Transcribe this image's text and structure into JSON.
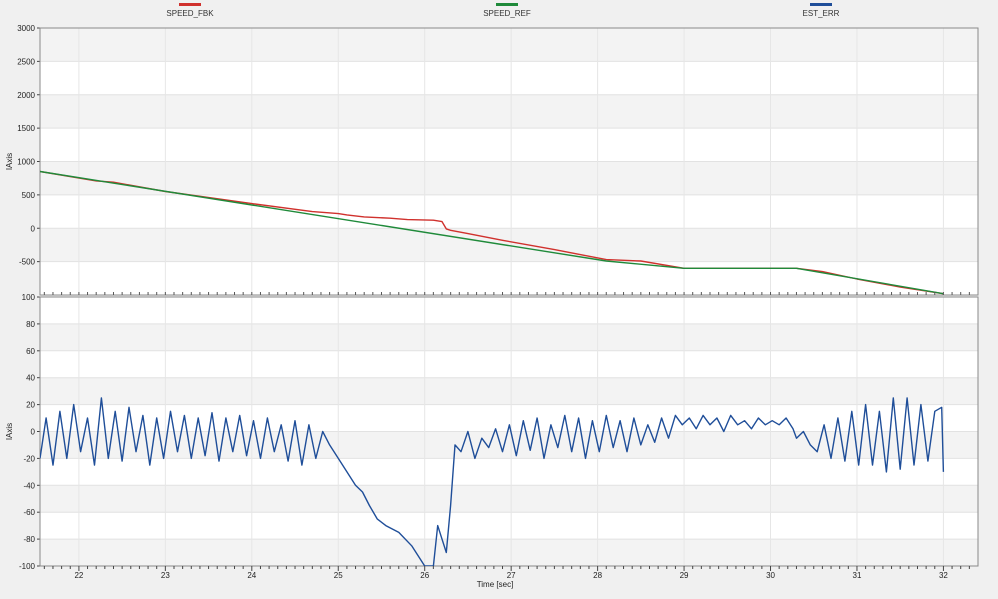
{
  "legend": [
    {
      "label": "SPEED_FBK",
      "color": "#d0312d"
    },
    {
      "label": "SPEED_REF",
      "color": "#1f8a3a"
    },
    {
      "label": "EST_ERR",
      "color": "#1f4e99"
    }
  ],
  "xlabel": "Time [sec]",
  "chart_data": [
    {
      "type": "line",
      "ylabel": "IAxis",
      "xlim": [
        21.55,
        32.4
      ],
      "ylim": [
        -1000,
        3000
      ],
      "yticks": [
        -500,
        0,
        500,
        1000,
        1500,
        2000,
        2500,
        3000
      ],
      "grid": true,
      "series": [
        {
          "name": "SPEED_REF",
          "color": "#1f8a3a",
          "x": [
            21.55,
            28.1,
            29.0,
            30.3,
            32.0
          ],
          "y": [
            850,
            -490,
            -600,
            -600,
            -980
          ]
        },
        {
          "name": "SPEED_FBK",
          "color": "#d0312d",
          "x": [
            21.55,
            22.2,
            22.4,
            23.0,
            24.0,
            24.7,
            25.0,
            25.1,
            25.3,
            25.6,
            25.8,
            26.1,
            26.2,
            26.25,
            26.3,
            26.5,
            26.9,
            27.5,
            28.1,
            28.5,
            29.0,
            30.3,
            30.6,
            31.0,
            31.5,
            32.0
          ],
          "y": [
            850,
            710,
            690,
            550,
            370,
            250,
            220,
            200,
            170,
            150,
            130,
            120,
            100,
            -10,
            -30,
            -80,
            -180,
            -320,
            -470,
            -490,
            -600,
            -600,
            -650,
            -760,
            -880,
            -980
          ]
        }
      ]
    },
    {
      "type": "line",
      "ylabel": "IAxis",
      "xlim": [
        21.55,
        32.4
      ],
      "ylim": [
        -100,
        100
      ],
      "yticks": [
        -100,
        -80,
        -60,
        -40,
        -20,
        0,
        20,
        40,
        60,
        80,
        100
      ],
      "xticks": [
        22,
        23,
        24,
        25,
        26,
        27,
        28,
        29,
        30,
        31,
        32
      ],
      "grid": true,
      "series": [
        {
          "name": "EST_ERR",
          "color": "#1f4e99",
          "x": [
            21.55,
            21.62,
            21.7,
            21.78,
            21.86,
            21.94,
            22.02,
            22.1,
            22.18,
            22.26,
            22.34,
            22.42,
            22.5,
            22.58,
            22.66,
            22.74,
            22.82,
            22.9,
            22.98,
            23.06,
            23.14,
            23.22,
            23.3,
            23.38,
            23.46,
            23.54,
            23.62,
            23.7,
            23.78,
            23.86,
            23.94,
            24.02,
            24.1,
            24.18,
            24.26,
            24.34,
            24.42,
            24.5,
            24.58,
            24.66,
            24.74,
            24.82,
            24.9,
            25.0,
            25.2,
            25.28,
            25.36,
            25.45,
            25.55,
            25.7,
            25.85,
            26.0,
            26.1,
            26.15,
            26.2,
            26.25,
            26.3,
            26.35,
            26.42,
            26.5,
            26.58,
            26.66,
            26.74,
            26.82,
            26.9,
            26.98,
            27.06,
            27.14,
            27.22,
            27.3,
            27.38,
            27.46,
            27.54,
            27.62,
            27.7,
            27.78,
            27.86,
            27.94,
            28.02,
            28.1,
            28.18,
            28.26,
            28.34,
            28.42,
            28.5,
            28.58,
            28.66,
            28.74,
            28.82,
            28.9,
            28.98,
            29.06,
            29.14,
            29.22,
            29.3,
            29.38,
            29.46,
            29.54,
            29.62,
            29.7,
            29.78,
            29.86,
            29.94,
            30.02,
            30.1,
            30.18,
            30.26,
            30.3,
            30.38,
            30.46,
            30.54,
            30.62,
            30.7,
            30.78,
            30.86,
            30.94,
            31.02,
            31.1,
            31.18,
            31.26,
            31.34,
            31.42,
            31.5,
            31.58,
            31.66,
            31.74,
            31.82,
            31.9,
            31.98,
            32.0
          ],
          "y": [
            -20,
            10,
            -25,
            15,
            -20,
            20,
            -15,
            10,
            -25,
            25,
            -20,
            15,
            -22,
            18,
            -15,
            12,
            -25,
            10,
            -20,
            15,
            -15,
            12,
            -20,
            10,
            -18,
            14,
            -22,
            10,
            -15,
            12,
            -18,
            8,
            -20,
            10,
            -15,
            5,
            -22,
            8,
            -25,
            5,
            -20,
            0,
            -10,
            -20,
            -40,
            -45,
            -55,
            -65,
            -70,
            -75,
            -85,
            -100,
            -100,
            -70,
            -80,
            -90,
            -55,
            -10,
            -15,
            0,
            -20,
            -5,
            -12,
            2,
            -15,
            5,
            -18,
            8,
            -14,
            10,
            -20,
            5,
            -12,
            12,
            -15,
            10,
            -20,
            8,
            -15,
            12,
            -12,
            8,
            -15,
            10,
            -10,
            5,
            -8,
            10,
            -5,
            12,
            5,
            10,
            2,
            12,
            5,
            10,
            0,
            12,
            5,
            8,
            2,
            10,
            5,
            8,
            5,
            10,
            2,
            -5,
            0,
            -10,
            -15,
            5,
            -20,
            10,
            -22,
            15,
            -25,
            20,
            -25,
            15,
            -30,
            25,
            -28,
            25,
            -25,
            20,
            -22,
            15,
            18,
            -30
          ]
        }
      ]
    }
  ]
}
